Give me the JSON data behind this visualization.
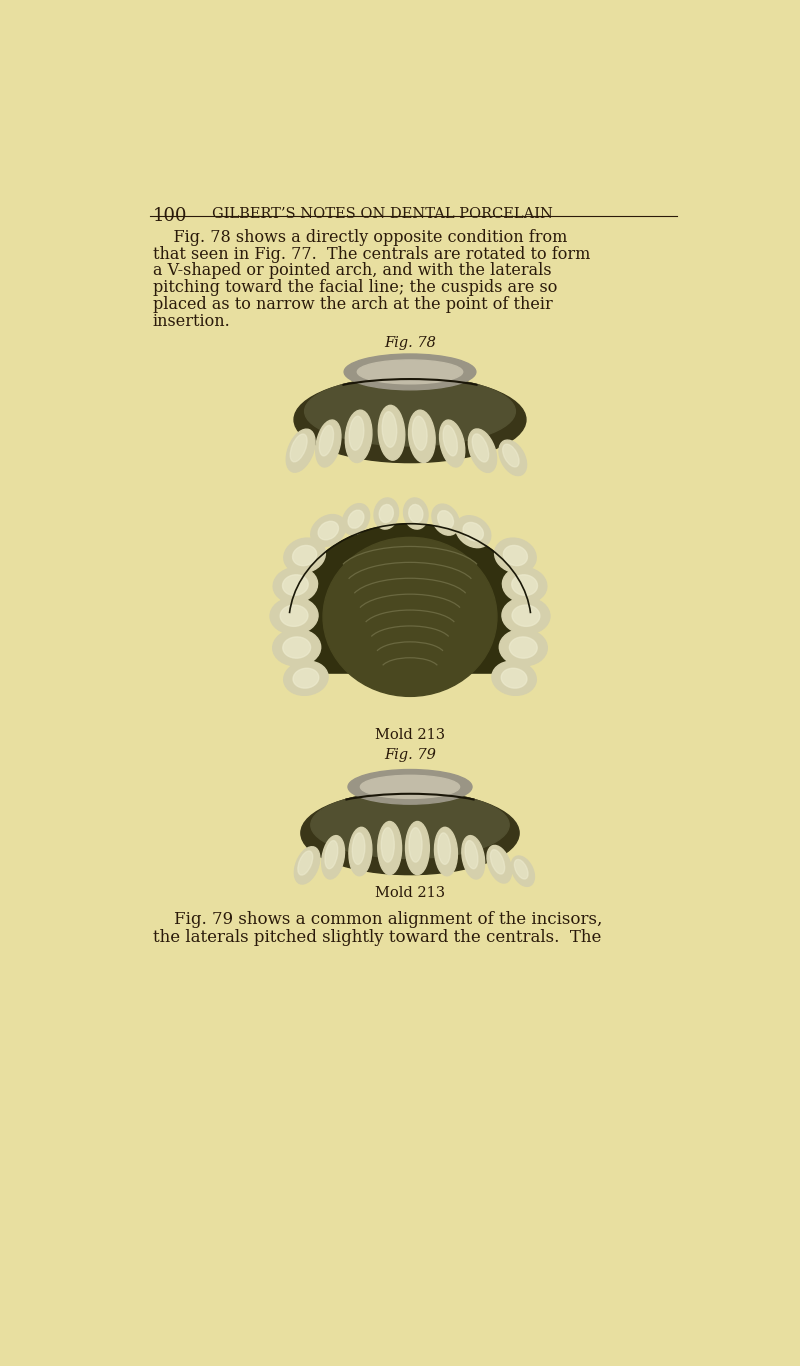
{
  "bg_color": "#e8dfa0",
  "text_color": "#2a1a0a",
  "header_page_num": "100",
  "header_title": "GILBERT’S NOTES ON DENTAL PORCELAIN",
  "body_text_fig78_line1": "    Fig. 78 shows a directly opposite condition from",
  "body_text_fig78_line2": "that seen in Fig. 77.  The centrals are rotated to form",
  "body_text_fig78_line3": "a V-shaped or pointed arch, and with the laterals",
  "body_text_fig78_line4": "pitching toward the facial line; the cuspids are so",
  "body_text_fig78_line5": "placed as to narrow the arch at the point of their",
  "body_text_fig78_line6": "insertion.",
  "fig78_label": "Fig. 78",
  "mold213_label1": "Mold 213",
  "fig79_label": "Fig. 79",
  "mold213_label2": "Mold 213",
  "body_text_fig79_line1": "    Fig. 79 shows a common alignment of the incisors,",
  "body_text_fig79_line2": "the laterals pitched slightly toward the centrals.  The"
}
